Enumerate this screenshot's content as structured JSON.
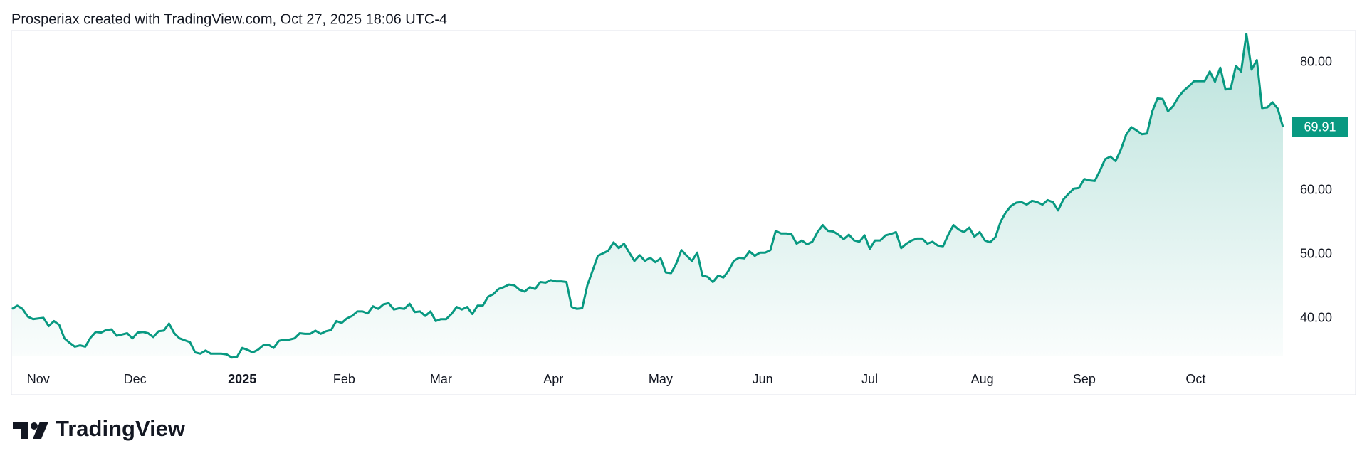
{
  "header": "Prosperiax created with TradingView.com, Oct 27, 2025 18:06 UTC-4",
  "brand": "TradingView",
  "chart_data": {
    "type": "area",
    "series": [
      {
        "color": "#089981",
        "values": [
          41.5,
          42.0,
          41.5,
          40.3,
          39.9,
          40.0,
          40.1,
          38.8,
          39.6,
          39.0,
          36.9,
          36.2,
          35.6,
          35.8,
          35.6,
          37.0,
          37.9,
          37.8,
          38.2,
          38.3,
          37.3,
          37.5,
          37.7,
          36.9,
          37.8,
          37.9,
          37.7,
          37.1,
          38.0,
          38.1,
          39.2,
          37.7,
          36.9,
          36.6,
          36.3,
          34.7,
          34.5,
          35.0,
          34.5,
          34.5,
          34.5,
          34.4,
          33.9,
          34.0,
          35.4,
          35.1,
          34.7,
          35.1,
          35.8,
          35.9,
          35.4,
          36.5,
          36.7,
          36.7,
          36.9,
          37.7,
          37.6,
          37.6,
          38.1,
          37.6,
          38.0,
          38.2,
          39.6,
          39.3,
          40.0,
          40.4,
          41.1,
          41.1,
          40.8,
          41.9,
          41.5,
          42.2,
          42.4,
          41.4,
          41.6,
          41.5,
          42.3,
          41.0,
          41.1,
          40.4,
          41.1,
          39.6,
          39.9,
          39.9,
          40.7,
          41.8,
          41.4,
          41.8,
          40.7,
          42.0,
          42.0,
          43.4,
          43.8,
          44.6,
          44.9,
          45.3,
          45.2,
          44.5,
          44.2,
          44.9,
          44.6,
          45.7,
          45.6,
          46.0,
          45.8,
          45.8,
          45.7,
          41.8,
          41.5,
          41.6,
          45.2,
          47.5,
          49.8,
          50.2,
          50.6,
          51.9,
          51.0,
          51.7,
          50.3,
          49.0,
          49.9,
          49.0,
          49.5,
          48.8,
          49.4,
          47.2,
          47.1,
          48.6,
          50.7,
          49.8,
          49.0,
          50.3,
          46.7,
          46.5,
          45.7,
          46.7,
          46.4,
          47.5,
          49.0,
          49.5,
          49.4,
          50.5,
          49.8,
          50.3,
          50.3,
          50.7,
          53.7,
          53.3,
          53.3,
          53.2,
          51.7,
          52.2,
          51.6,
          52.0,
          53.5,
          54.6,
          53.7,
          53.6,
          53.1,
          52.4,
          53.1,
          52.2,
          52.0,
          53.0,
          50.9,
          52.2,
          52.2,
          53.0,
          53.2,
          53.5,
          51.0,
          51.7,
          52.2,
          52.5,
          52.5,
          51.7,
          52.0,
          51.4,
          51.3,
          53.1,
          54.6,
          53.9,
          53.5,
          54.2,
          52.8,
          53.5,
          52.2,
          51.9,
          52.7,
          55.1,
          56.6,
          57.6,
          58.1,
          58.2,
          57.8,
          58.4,
          58.2,
          57.8,
          58.5,
          58.2,
          56.9,
          58.6,
          59.5,
          60.3,
          60.4,
          61.8,
          61.6,
          61.5,
          63.1,
          64.9,
          65.3,
          64.6,
          66.4,
          68.7,
          69.9,
          69.4,
          68.8,
          68.9,
          72.4,
          74.4,
          74.3,
          72.4,
          73.2,
          74.6,
          75.6,
          76.3,
          77.1,
          77.1,
          77.1,
          78.6,
          77.0,
          79.2,
          75.8,
          75.9,
          79.5,
          78.6,
          84.5,
          78.9,
          80.4,
          72.9,
          73.0,
          73.8,
          72.8,
          69.91
        ]
      }
    ],
    "xticks": [
      {
        "value": 5,
        "label": "Nov"
      },
      {
        "value": 23.5,
        "label": "Dec"
      },
      {
        "value": 44,
        "label": "2025"
      },
      {
        "value": 63.5,
        "label": "Feb"
      },
      {
        "value": 82,
        "label": "Mar"
      },
      {
        "value": 103.5,
        "label": "Apr"
      },
      {
        "value": 124,
        "label": "May"
      },
      {
        "value": 143.5,
        "label": "Jun"
      },
      {
        "value": 164,
        "label": "Jul"
      },
      {
        "value": 185.5,
        "label": "Aug"
      },
      {
        "value": 205,
        "label": "Sep"
      },
      {
        "value": 226.3,
        "label": "Oct"
      }
    ],
    "ylim": [
      34.2,
      85
    ],
    "yticks": [
      {
        "value": 40,
        "label": "40.00"
      },
      {
        "value": 50,
        "label": "50.00"
      },
      {
        "value": 60,
        "label": "60.00"
      },
      {
        "value": 80,
        "label": "80.00"
      }
    ]
  }
}
